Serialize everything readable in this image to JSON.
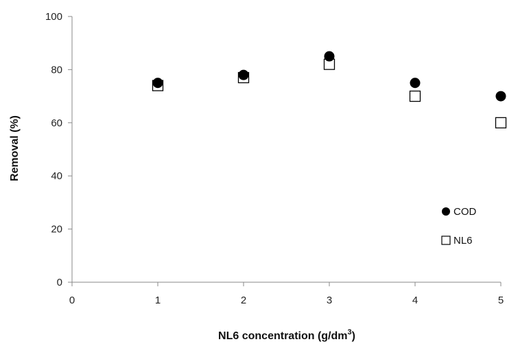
{
  "chart_data": {
    "type": "scatter",
    "xlabel": "NL6 concentration  (g/dm",
    "xlabel_superscript": "3",
    "xlabel_suffix": ")",
    "ylabel": "Removal (%)",
    "xlim": [
      0,
      5
    ],
    "ylim": [
      0,
      100
    ],
    "xticks": [
      0,
      1,
      2,
      3,
      4,
      5
    ],
    "yticks": [
      0,
      20,
      40,
      60,
      80,
      100
    ],
    "grid": false,
    "legend_position": "bottom-right",
    "series": [
      {
        "name": "COD",
        "marker": "filled-circle",
        "color": "#000000",
        "x": [
          1,
          2,
          3,
          4,
          5
        ],
        "y": [
          75,
          78,
          85,
          75,
          70
        ]
      },
      {
        "name": "NL6",
        "marker": "open-square",
        "color": "#000000",
        "x": [
          1,
          2,
          3,
          4,
          5
        ],
        "y": [
          74,
          77,
          82,
          70,
          60
        ]
      }
    ]
  }
}
